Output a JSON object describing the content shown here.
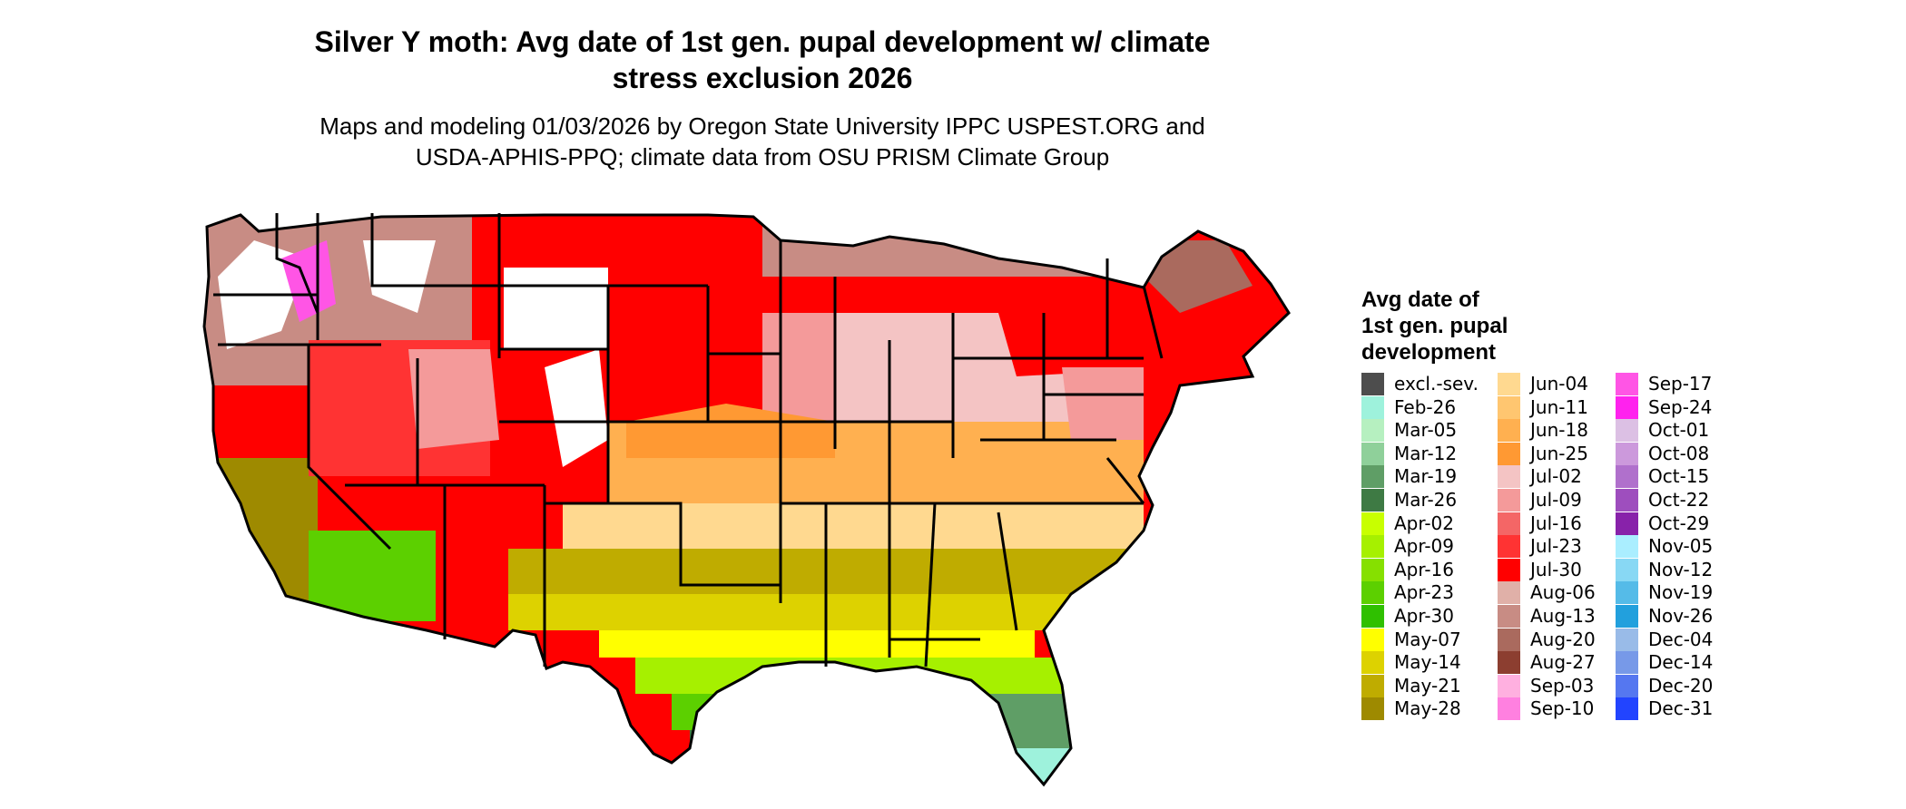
{
  "title_line1": "Silver Y moth: Avg date of 1st gen. pupal development w/ climate",
  "title_line2": "stress exclusion 2026",
  "subtitle_line1": "Maps and modeling 01/03/2026 by Oregon State University IPPC USPEST.ORG and",
  "subtitle_line2": "USDA-APHIS-PPQ; climate data from OSU PRISM Climate Group",
  "legend": {
    "title_line1": "Avg date of",
    "title_line2": "1st gen. pupal",
    "title_line3": "development",
    "col1": [
      {
        "label": "excl.-sev.",
        "color": "#4d4d4d"
      },
      {
        "label": "Feb-26",
        "color": "#9ef2dc"
      },
      {
        "label": "Mar-05",
        "color": "#b6f0c0"
      },
      {
        "label": "Mar-12",
        "color": "#8fd09a"
      },
      {
        "label": "Mar-19",
        "color": "#5f9e66"
      },
      {
        "label": "Mar-26",
        "color": "#3e7a44"
      },
      {
        "label": "Apr-02",
        "color": "#c8ff00"
      },
      {
        "label": "Apr-09",
        "color": "#a6f000"
      },
      {
        "label": "Apr-16",
        "color": "#86e000"
      },
      {
        "label": "Apr-23",
        "color": "#5cd000"
      },
      {
        "label": "Apr-30",
        "color": "#2fc000"
      },
      {
        "label": "May-07",
        "color": "#ffff00"
      },
      {
        "label": "May-14",
        "color": "#ddd200"
      },
      {
        "label": "May-21",
        "color": "#bfac00"
      },
      {
        "label": "May-28",
        "color": "#9e8a00"
      }
    ],
    "col2": [
      {
        "label": "Jun-04",
        "color": "#ffd990"
      },
      {
        "label": "Jun-11",
        "color": "#ffc670"
      },
      {
        "label": "Jun-18",
        "color": "#ffb050"
      },
      {
        "label": "Jun-25",
        "color": "#ff9933"
      },
      {
        "label": "Jul-02",
        "color": "#f4c4c4"
      },
      {
        "label": "Jul-09",
        "color": "#f49a9a"
      },
      {
        "label": "Jul-16",
        "color": "#f46666"
      },
      {
        "label": "Jul-23",
        "color": "#ff3333"
      },
      {
        "label": "Jul-30",
        "color": "#ff0000"
      },
      {
        "label": "Aug-06",
        "color": "#e0b0a8"
      },
      {
        "label": "Aug-13",
        "color": "#c88c84"
      },
      {
        "label": "Aug-20",
        "color": "#aa6a5e"
      },
      {
        "label": "Aug-27",
        "color": "#8c3e30"
      },
      {
        "label": "Sep-03",
        "color": "#ffb0e0"
      },
      {
        "label": "Sep-10",
        "color": "#ff80e0"
      }
    ],
    "col3": [
      {
        "label": "Sep-17",
        "color": "#ff55e5"
      },
      {
        "label": "Sep-24",
        "color": "#ff22ee"
      },
      {
        "label": "Oct-01",
        "color": "#dcc0e4"
      },
      {
        "label": "Oct-08",
        "color": "#cc99dc"
      },
      {
        "label": "Oct-15",
        "color": "#b070cc"
      },
      {
        "label": "Oct-22",
        "color": "#9e4ebe"
      },
      {
        "label": "Oct-29",
        "color": "#8822aa"
      },
      {
        "label": "Nov-05",
        "color": "#aaeeff"
      },
      {
        "label": "Nov-12",
        "color": "#88d8f4"
      },
      {
        "label": "Nov-19",
        "color": "#55bbe8"
      },
      {
        "label": "Nov-26",
        "color": "#22a0dd"
      },
      {
        "label": "Dec-04",
        "color": "#99bbe8"
      },
      {
        "label": "Dec-14",
        "color": "#7799e8"
      },
      {
        "label": "Dec-20",
        "color": "#5577f0"
      },
      {
        "label": "Dec-31",
        "color": "#2244ff"
      }
    ]
  },
  "map_colors": {
    "outline": "#000000",
    "red": "#ff0000",
    "red_light": "#ff3333",
    "pink": "#f4c4c4",
    "salmon": "#f49a9a",
    "brown_light": "#c88c84",
    "brown": "#aa6a5e",
    "white": "#ffffff",
    "magenta": "#ff55e5",
    "orange": "#ffb050",
    "orange_dark": "#ff9933",
    "peach": "#ffd990",
    "olive": "#9e8a00",
    "olive_light": "#bfac00",
    "yellow": "#ffff00",
    "yellow_dark": "#ddd200",
    "green_bright": "#5cd000",
    "green_lime": "#a6f000",
    "green_dark": "#3e7a44",
    "green_mid": "#5f9e66",
    "mint": "#9ef2dc"
  }
}
